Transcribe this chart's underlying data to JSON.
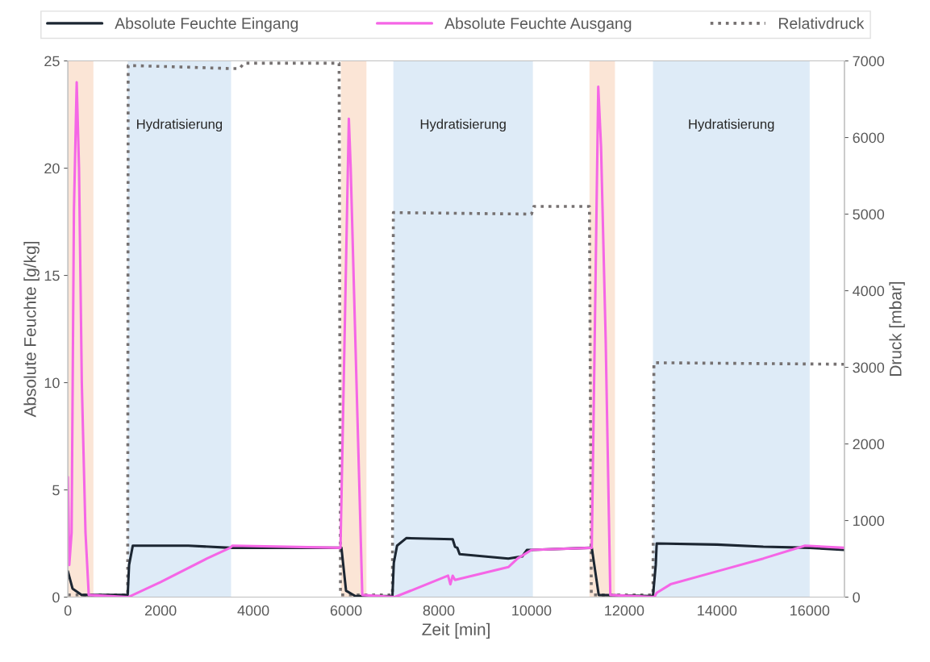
{
  "chart_data": {
    "type": "line",
    "xlabel": "Zeit [min]",
    "ylabel": "Absolute Feuchte [g/kg]",
    "y2label": "Druck [mbar]",
    "xlim": [
      0,
      16750
    ],
    "xticks": [
      0,
      2000,
      4000,
      6000,
      8000,
      10000,
      12000,
      14000,
      16000
    ],
    "ylim": [
      0,
      25
    ],
    "yticks": [
      0,
      5,
      10,
      15,
      20,
      25
    ],
    "y2lim": [
      0,
      7000
    ],
    "y2ticks": [
      0,
      1000,
      2000,
      3000,
      4000,
      5000,
      6000,
      7000
    ],
    "grid": false,
    "legend": "top",
    "marker": "none",
    "bands": [
      {
        "axis": "x",
        "from": 0,
        "to": 550,
        "color": "#fbe5d6"
      },
      {
        "axis": "x",
        "from": 1290,
        "to": 3520,
        "label": "Hydratisierung",
        "color": "#deebf7"
      },
      {
        "axis": "x",
        "from": 5890,
        "to": 6440,
        "color": "#fbe5d6"
      },
      {
        "axis": "x",
        "from": 7020,
        "to": 10030,
        "label": "Hydratisierung",
        "color": "#deebf7"
      },
      {
        "axis": "x",
        "from": 11250,
        "to": 11800,
        "color": "#fbe5d6"
      },
      {
        "axis": "x",
        "from": 12620,
        "to": 16000,
        "label": "Hydratisierung",
        "color": "#deebf7"
      }
    ],
    "series": [
      {
        "name": "Absolute Feuchte Eingang",
        "color": "#1c2632",
        "line_style": "solid",
        "x": [
          0,
          100,
          300,
          1290,
          1320,
          1400,
          2600,
          3500,
          5880,
          5900,
          6000,
          6200,
          7000,
          7030,
          7100,
          7300,
          8300,
          8350,
          8400,
          8450,
          9500,
          9800,
          9900,
          10000,
          11250,
          11300,
          11450,
          12620,
          12680,
          12700,
          14000,
          15000,
          16000,
          16750
        ],
        "values": [
          1.2,
          0.4,
          0.1,
          0.1,
          1.5,
          2.4,
          2.4,
          2.3,
          2.3,
          2.3,
          0.3,
          0.05,
          0.05,
          1.6,
          2.4,
          2.75,
          2.7,
          2.35,
          2.3,
          2.0,
          1.8,
          1.9,
          2.2,
          2.2,
          2.3,
          2.3,
          0.1,
          0.05,
          1.5,
          2.5,
          2.45,
          2.35,
          2.3,
          2.2
        ]
      },
      {
        "name": "Absolute Feuchte Ausgang",
        "color": "#f566e6",
        "line_style": "solid",
        "x": [
          0,
          30,
          80,
          130,
          190,
          240,
          300,
          380,
          450,
          1300,
          2000,
          3000,
          3500,
          3550,
          5880,
          6060,
          6100,
          6200,
          6350,
          7050,
          8200,
          8250,
          8300,
          8350,
          9500,
          9700,
          10000,
          11300,
          11440,
          11500,
          11600,
          11700,
          12650,
          12700,
          13000,
          14000,
          15000,
          15900,
          16750
        ],
        "values": [
          5.6,
          1.5,
          3,
          18,
          24,
          20,
          10,
          3,
          0.1,
          0,
          0.7,
          1.8,
          2.3,
          2.4,
          2.3,
          22.3,
          20,
          12,
          0.1,
          0,
          1.0,
          0.6,
          1.0,
          0.8,
          1.4,
          1.8,
          2.2,
          2.3,
          23.8,
          21,
          12,
          0.1,
          0,
          0.2,
          0.6,
          1.2,
          1.8,
          2.4,
          2.3
        ]
      },
      {
        "name": "Relativdruck",
        "color": "#767171",
        "axis": "y2",
        "line_style": "dotted",
        "x": [
          0,
          1290,
          1300,
          2500,
          3500,
          3700,
          3800,
          5850,
          5880,
          7000,
          7020,
          10000,
          10050,
          11250,
          11290,
          12620,
          12640,
          16750
        ],
        "values": [
          30,
          30,
          6940,
          6920,
          6900,
          6900,
          6970,
          6970,
          30,
          30,
          5020,
          5000,
          5100,
          5100,
          30,
          30,
          3060,
          3040
        ]
      }
    ]
  }
}
